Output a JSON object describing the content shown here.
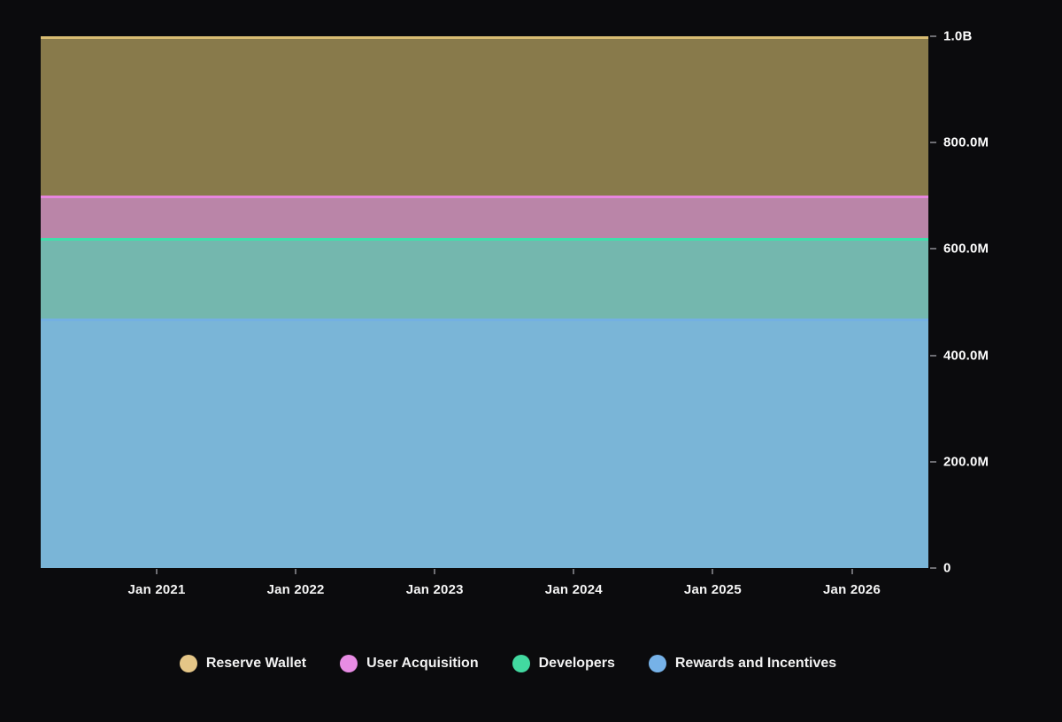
{
  "page": {
    "background": "#0b0b0d",
    "text_color": "#ffffff"
  },
  "chart_data": {
    "type": "area",
    "stacked": true,
    "title": "",
    "xlabel": "",
    "ylabel": "",
    "grid": false,
    "ylim": [
      0,
      1000000000
    ],
    "x_tick_labels": [
      "Jan 2021",
      "Jan 2022",
      "Jan 2023",
      "Jan 2024",
      "Jan 2025",
      "Jan 2026"
    ],
    "y_ticks": [
      {
        "value": 0,
        "label": "0"
      },
      {
        "value": 200000000,
        "label": "200.0M"
      },
      {
        "value": 400000000,
        "label": "400.0M"
      },
      {
        "value": 600000000,
        "label": "600.0M"
      },
      {
        "value": 800000000,
        "label": "800.0M"
      },
      {
        "value": 1000000000,
        "label": "1.0B"
      }
    ],
    "series": [
      {
        "name": "Rewards and Incentives",
        "value": 470000000,
        "fill": "#7ab5d7",
        "line": "#74b0e2",
        "marker": "#76b2e8"
      },
      {
        "name": "Developers",
        "value": 150000000,
        "fill": "#74b7ae",
        "line": "#3fdfab",
        "marker": "#42d9a0"
      },
      {
        "name": "User Acquisition",
        "value": 80000000,
        "fill": "#ba85a8",
        "line": "#e786df",
        "marker": "#e88ce4"
      },
      {
        "name": "Reserve Wallet",
        "value": 300000000,
        "fill": "#887a4b",
        "line": "#d8bc72",
        "marker": "#e5c687"
      }
    ],
    "legend": {
      "position": "bottom-center",
      "items": [
        "Reserve Wallet",
        "User Acquisition",
        "Developers",
        "Rewards and Incentives"
      ]
    }
  }
}
